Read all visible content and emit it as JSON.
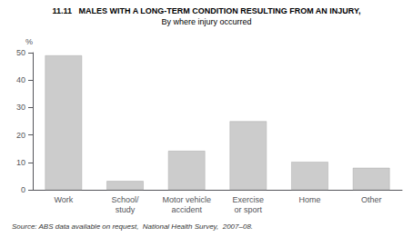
{
  "chart_data": {
    "type": "bar",
    "title": "11.11   MALES WITH A LONG-TERM CONDITION RESULTING FROM AN INJURY,",
    "subtitle": "By where injury occurred",
    "ylabel": "%",
    "source": "Source: ABS data available on request,  National Health Survey,  2007–08.",
    "categories": [
      "Work",
      "School/\nstudy",
      "Motor vehicle\naccident",
      "Exercise\nor sport",
      "Home",
      "Other"
    ],
    "values": [
      49.0,
      3.2,
      14.2,
      25.0,
      10.2,
      8.0
    ],
    "color": "#cccccc",
    "ylim": [
      0,
      50
    ],
    "yticks": [
      0,
      10,
      20,
      30,
      40,
      50
    ],
    "grid": false
  }
}
